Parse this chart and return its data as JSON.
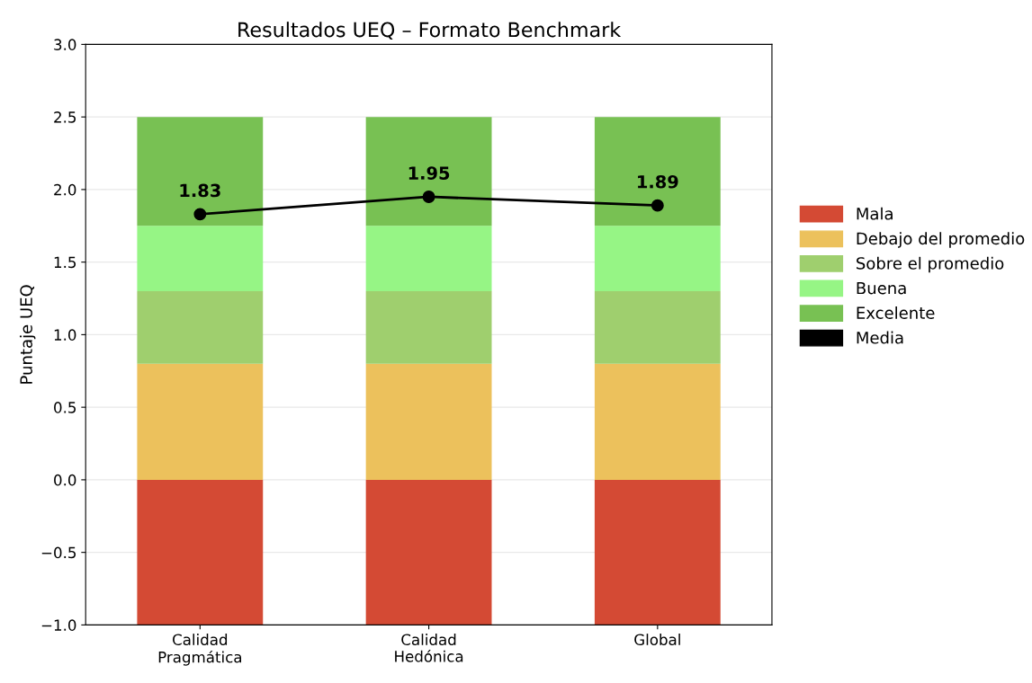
{
  "chart_data": {
    "type": "bar",
    "title": "Resultados UEQ – Formato Benchmark",
    "ylabel": "Puntaje UEQ",
    "categories": [
      "Calidad\nPragmática",
      "Calidad\nHedónica",
      "Global"
    ],
    "stacked": true,
    "ylim": [
      -1.0,
      3.0
    ],
    "yticks": [
      {
        "value": -1.0,
        "label": "−1.0"
      },
      {
        "value": -0.5,
        "label": "−0.5"
      },
      {
        "value": 0.0,
        "label": "0.0"
      },
      {
        "value": 0.5,
        "label": "0.5"
      },
      {
        "value": 1.0,
        "label": "1.0"
      },
      {
        "value": 1.5,
        "label": "1.5"
      },
      {
        "value": 2.0,
        "label": "2.0"
      },
      {
        "value": 2.5,
        "label": "2.5"
      },
      {
        "value": 3.0,
        "label": "3.0"
      }
    ],
    "grid": "y",
    "legend": "right",
    "series": [
      {
        "name": "Mala",
        "color": "#d44a34",
        "values": [
          -1.0,
          -1.0,
          -1.0
        ]
      },
      {
        "name": "Debajo del promedio",
        "color": "#ecc15c",
        "values": [
          0.8,
          0.8,
          0.8
        ]
      },
      {
        "name": "Sobre el promedio",
        "color": "#9fcf6e",
        "values": [
          0.5,
          0.5,
          0.5
        ]
      },
      {
        "name": "Buena",
        "color": "#96f585",
        "values": [
          0.45,
          0.45,
          0.45
        ]
      },
      {
        "name": "Excelente",
        "color": "#78c153",
        "values": [
          0.75,
          0.75,
          0.75
        ]
      },
      {
        "name": "Media",
        "type": "line",
        "color": "#000000",
        "marker": "circle",
        "line_style": "solid",
        "values": [
          1.83,
          1.95,
          1.89
        ],
        "value_labels": [
          "1.83",
          "1.95",
          "1.89"
        ]
      }
    ]
  }
}
